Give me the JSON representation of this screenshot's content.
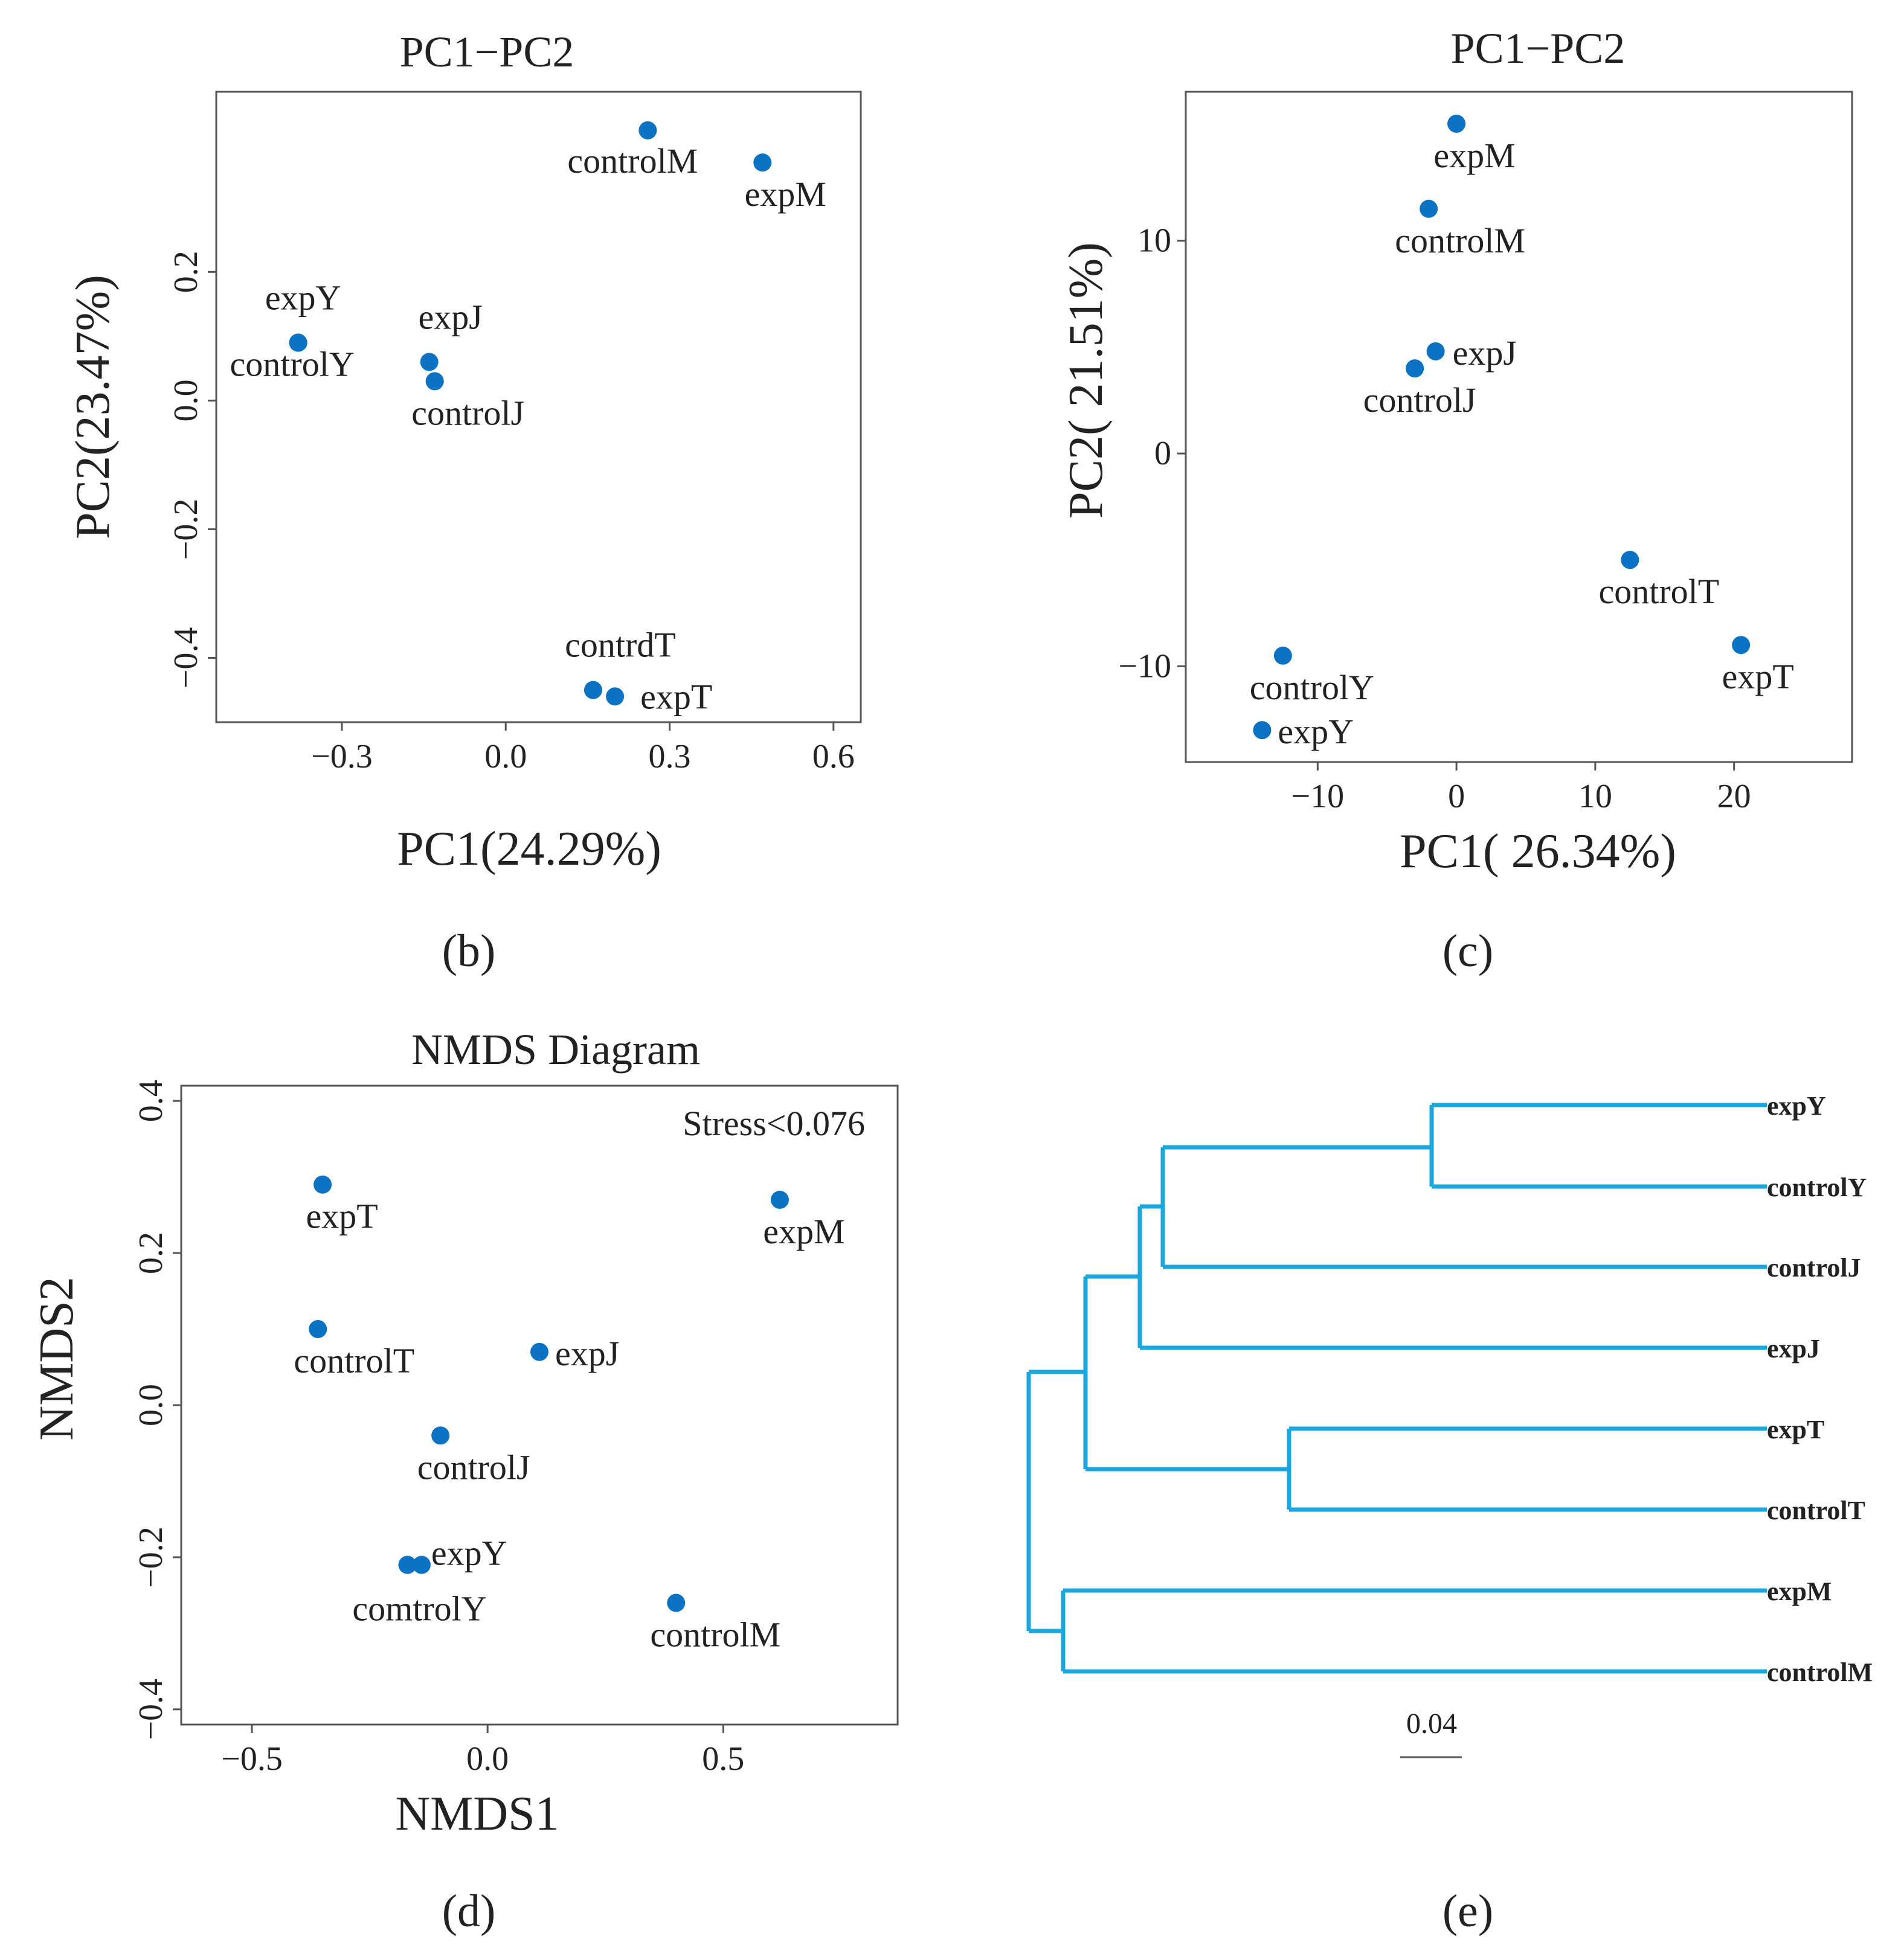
{
  "chart_data": [
    {
      "panel": "b",
      "type": "scatter",
      "title": "PC1−PC2",
      "xlabel": "PC1(24.29%)",
      "ylabel": "PC2(23.47%)",
      "xlim": [
        -0.53,
        0.65
      ],
      "ylim": [
        -0.5,
        0.48
      ],
      "xticks": [
        {
          "v": -0.3,
          "t": "−0.3"
        },
        {
          "v": 0.0,
          "t": "0.0"
        },
        {
          "v": 0.3,
          "t": "0.3"
        },
        {
          "v": 0.6,
          "t": "0.6"
        }
      ],
      "yticks": [
        {
          "v": -0.4,
          "t": "−0.4"
        },
        {
          "v": -0.2,
          "t": "−0.2"
        },
        {
          "v": 0.0,
          "t": "0.0"
        },
        {
          "v": 0.2,
          "t": "0.2"
        }
      ],
      "points": [
        {
          "label": "controlM",
          "x": 0.26,
          "y": 0.42,
          "anchor": "middle",
          "dx": -25,
          "dy": 70
        },
        {
          "label": "expM",
          "x": 0.47,
          "y": 0.37,
          "anchor": "middle",
          "dx": 38,
          "dy": 72
        },
        {
          "label": "expY",
          "x": -0.38,
          "y": 0.09,
          "anchor": "middle",
          "dx": 8,
          "dy": -55
        },
        {
          "label": "controlY",
          "x": -0.38,
          "y": 0.09,
          "anchor": "middle",
          "dx": -10,
          "dy": 55
        },
        {
          "label": "expJ",
          "x": -0.14,
          "y": 0.06,
          "anchor": "middle",
          "dx": 35,
          "dy": -55
        },
        {
          "label": "controlJ",
          "x": -0.13,
          "y": 0.03,
          "anchor": "middle",
          "dx": 55,
          "dy": 72
        },
        {
          "label": "contrdT",
          "x": 0.16,
          "y": -0.45,
          "anchor": "middle",
          "dx": 45,
          "dy": -55
        },
        {
          "label": "expT",
          "x": 0.2,
          "y": -0.46,
          "anchor": "start",
          "dx": 42,
          "dy": 20
        }
      ]
    },
    {
      "panel": "c",
      "type": "scatter",
      "title": "PC1−PC2",
      "xlabel": "PC1( 26.34%)",
      "ylabel": "PC2( 21.51%)",
      "xlim": [
        -19.5,
        28.5
      ],
      "ylim": [
        -14.5,
        17
      ],
      "xticks": [
        {
          "v": -10,
          "t": "−10"
        },
        {
          "v": 0,
          "t": "0"
        },
        {
          "v": 10,
          "t": "10"
        },
        {
          "v": 20,
          "t": "20"
        }
      ],
      "yticks": [
        {
          "v": -10,
          "t": "−10"
        },
        {
          "v": 0,
          "t": "0"
        },
        {
          "v": 10,
          "t": "10"
        }
      ],
      "points": [
        {
          "label": "expM",
          "x": 0,
          "y": 15.5,
          "anchor": "middle",
          "dx": 30,
          "dy": 72
        },
        {
          "label": "controlM",
          "x": -2,
          "y": 11.5,
          "anchor": "middle",
          "dx": 52,
          "dy": 72
        },
        {
          "label": "expJ",
          "x": -1.5,
          "y": 4.8,
          "anchor": "start",
          "dx": 28,
          "dy": 22
        },
        {
          "label": "controlJ",
          "x": -3,
          "y": 4,
          "anchor": "middle",
          "dx": 8,
          "dy": 72
        },
        {
          "label": "controlT",
          "x": 12.5,
          "y": -5,
          "anchor": "middle",
          "dx": 48,
          "dy": 72
        },
        {
          "label": "expT",
          "x": 20.5,
          "y": -9,
          "anchor": "middle",
          "dx": 28,
          "dy": 72
        },
        {
          "label": "controlY",
          "x": -12.5,
          "y": -9.5,
          "anchor": "middle",
          "dx": 48,
          "dy": 72
        },
        {
          "label": "expY",
          "x": -14,
          "y": -13,
          "anchor": "start",
          "dx": 26,
          "dy": 22
        }
      ]
    },
    {
      "panel": "d",
      "type": "scatter",
      "title": "NMDS Diagram",
      "xlabel": "NMDS1",
      "ylabel": "NMDS2",
      "annotation": "Stress<0.076",
      "xlim": [
        -0.65,
        0.87
      ],
      "ylim": [
        -0.42,
        0.42
      ],
      "xticks": [
        {
          "v": -0.5,
          "t": "−0.5"
        },
        {
          "v": 0.0,
          "t": "0.0"
        },
        {
          "v": 0.5,
          "t": "0.5"
        }
      ],
      "yticks": [
        {
          "v": -0.4,
          "t": "−0.4"
        },
        {
          "v": -0.2,
          "t": "−0.2"
        },
        {
          "v": 0.0,
          "t": "0.0"
        },
        {
          "v": 0.2,
          "t": "0.2"
        },
        {
          "v": 0.4,
          "t": "0.4"
        }
      ],
      "points": [
        {
          "label": "expT",
          "x": -0.35,
          "y": 0.29,
          "anchor": "middle",
          "dx": 32,
          "dy": 72
        },
        {
          "label": "expM",
          "x": 0.62,
          "y": 0.27,
          "anchor": "middle",
          "dx": 40,
          "dy": 72
        },
        {
          "label": "controlT",
          "x": -0.36,
          "y": 0.1,
          "anchor": "middle",
          "dx": 60,
          "dy": 72
        },
        {
          "label": "expJ",
          "x": 0.11,
          "y": 0.07,
          "anchor": "start",
          "dx": 26,
          "dy": 22
        },
        {
          "label": "controlJ",
          "x": -0.1,
          "y": -0.04,
          "anchor": "middle",
          "dx": 55,
          "dy": 72
        },
        {
          "label": "expY",
          "x": -0.14,
          "y": -0.21,
          "anchor": "start",
          "dx": 16,
          "dy": 0
        },
        {
          "label": "comtrolY",
          "x": -0.17,
          "y": -0.21,
          "anchor": "middle",
          "dx": 20,
          "dy": 92
        },
        {
          "label": "controlM",
          "x": 0.4,
          "y": -0.26,
          "anchor": "middle",
          "dx": 65,
          "dy": 72
        }
      ]
    },
    {
      "panel": "e",
      "type": "dendrogram",
      "leaves": [
        "expY",
        "controlY",
        "controlJ",
        "expJ",
        "expT",
        "controlT",
        "expM",
        "controlM"
      ],
      "scale_label": "0.04"
    }
  ],
  "captions": {
    "b": "(b)",
    "c": "(c)",
    "d": "(d)",
    "e": "(e)"
  }
}
